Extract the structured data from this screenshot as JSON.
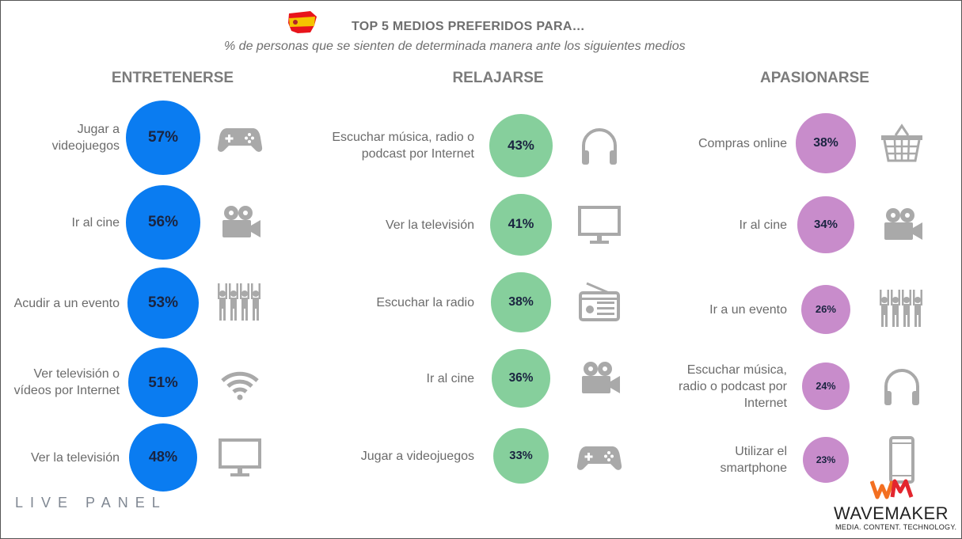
{
  "header": {
    "title": "TOP 5 MEDIOS PREFERIDOS PARA…",
    "subtitle": "% de personas que se sienten de determinada manera ante los siguientes medios"
  },
  "colors": {
    "blue": "#0a7cf1",
    "green": "#86cf9c",
    "purple": "#c88ccb",
    "icon": "#a9a9a9"
  },
  "chart_data": [
    {
      "type": "bubble",
      "title": "ENTRETENERSE",
      "color": "#0a7cf1",
      "categories": [
        "Jugar a videojuegos",
        "Ir al cine",
        "Acudir a un evento",
        "Ver televisión o vídeos por Internet",
        "Ver la televisión"
      ],
      "values": [
        57,
        56,
        53,
        51,
        48
      ],
      "value_labels": [
        "57%",
        "56%",
        "53%",
        "51%",
        "48%"
      ],
      "icons": [
        "gamepad-icon",
        "film-camera-icon",
        "crowd-icon",
        "wifi-icon",
        "tv-icon"
      ]
    },
    {
      "type": "bubble",
      "title": "RELAJARSE",
      "color": "#86cf9c",
      "categories": [
        "Escuchar música, radio o podcast por Internet",
        "Ver la televisión",
        "Escuchar la radio",
        "Ir al cine",
        "Jugar a videojuegos"
      ],
      "values": [
        43,
        41,
        38,
        36,
        33
      ],
      "value_labels": [
        "43%",
        "41%",
        "38%",
        "36%",
        "33%"
      ],
      "icons": [
        "headphones-icon",
        "tv-icon",
        "radio-icon",
        "film-camera-icon",
        "gamepad-icon"
      ]
    },
    {
      "type": "bubble",
      "title": "APASIONARSE",
      "color": "#c88ccb",
      "categories": [
        "Compras online",
        "Ir al cine",
        "Ir a un evento",
        "Escuchar música, radio o podcast por Internet",
        "Utilizar el smartphone"
      ],
      "values": [
        38,
        34,
        26,
        24,
        23
      ],
      "value_labels": [
        "38%",
        "34%",
        "26%",
        "24%",
        "23%"
      ],
      "icons": [
        "basket-icon",
        "film-camera-icon",
        "crowd-icon",
        "headphones-icon",
        "smartphone-icon"
      ]
    }
  ],
  "branding": {
    "livepanel": "LIVE PANEL",
    "wavemaker_logo": "WM",
    "wavemaker": "WAVEMAKER",
    "wavemaker_tagline": "MEDIA. CONTENT. TECHNOLOGY."
  }
}
